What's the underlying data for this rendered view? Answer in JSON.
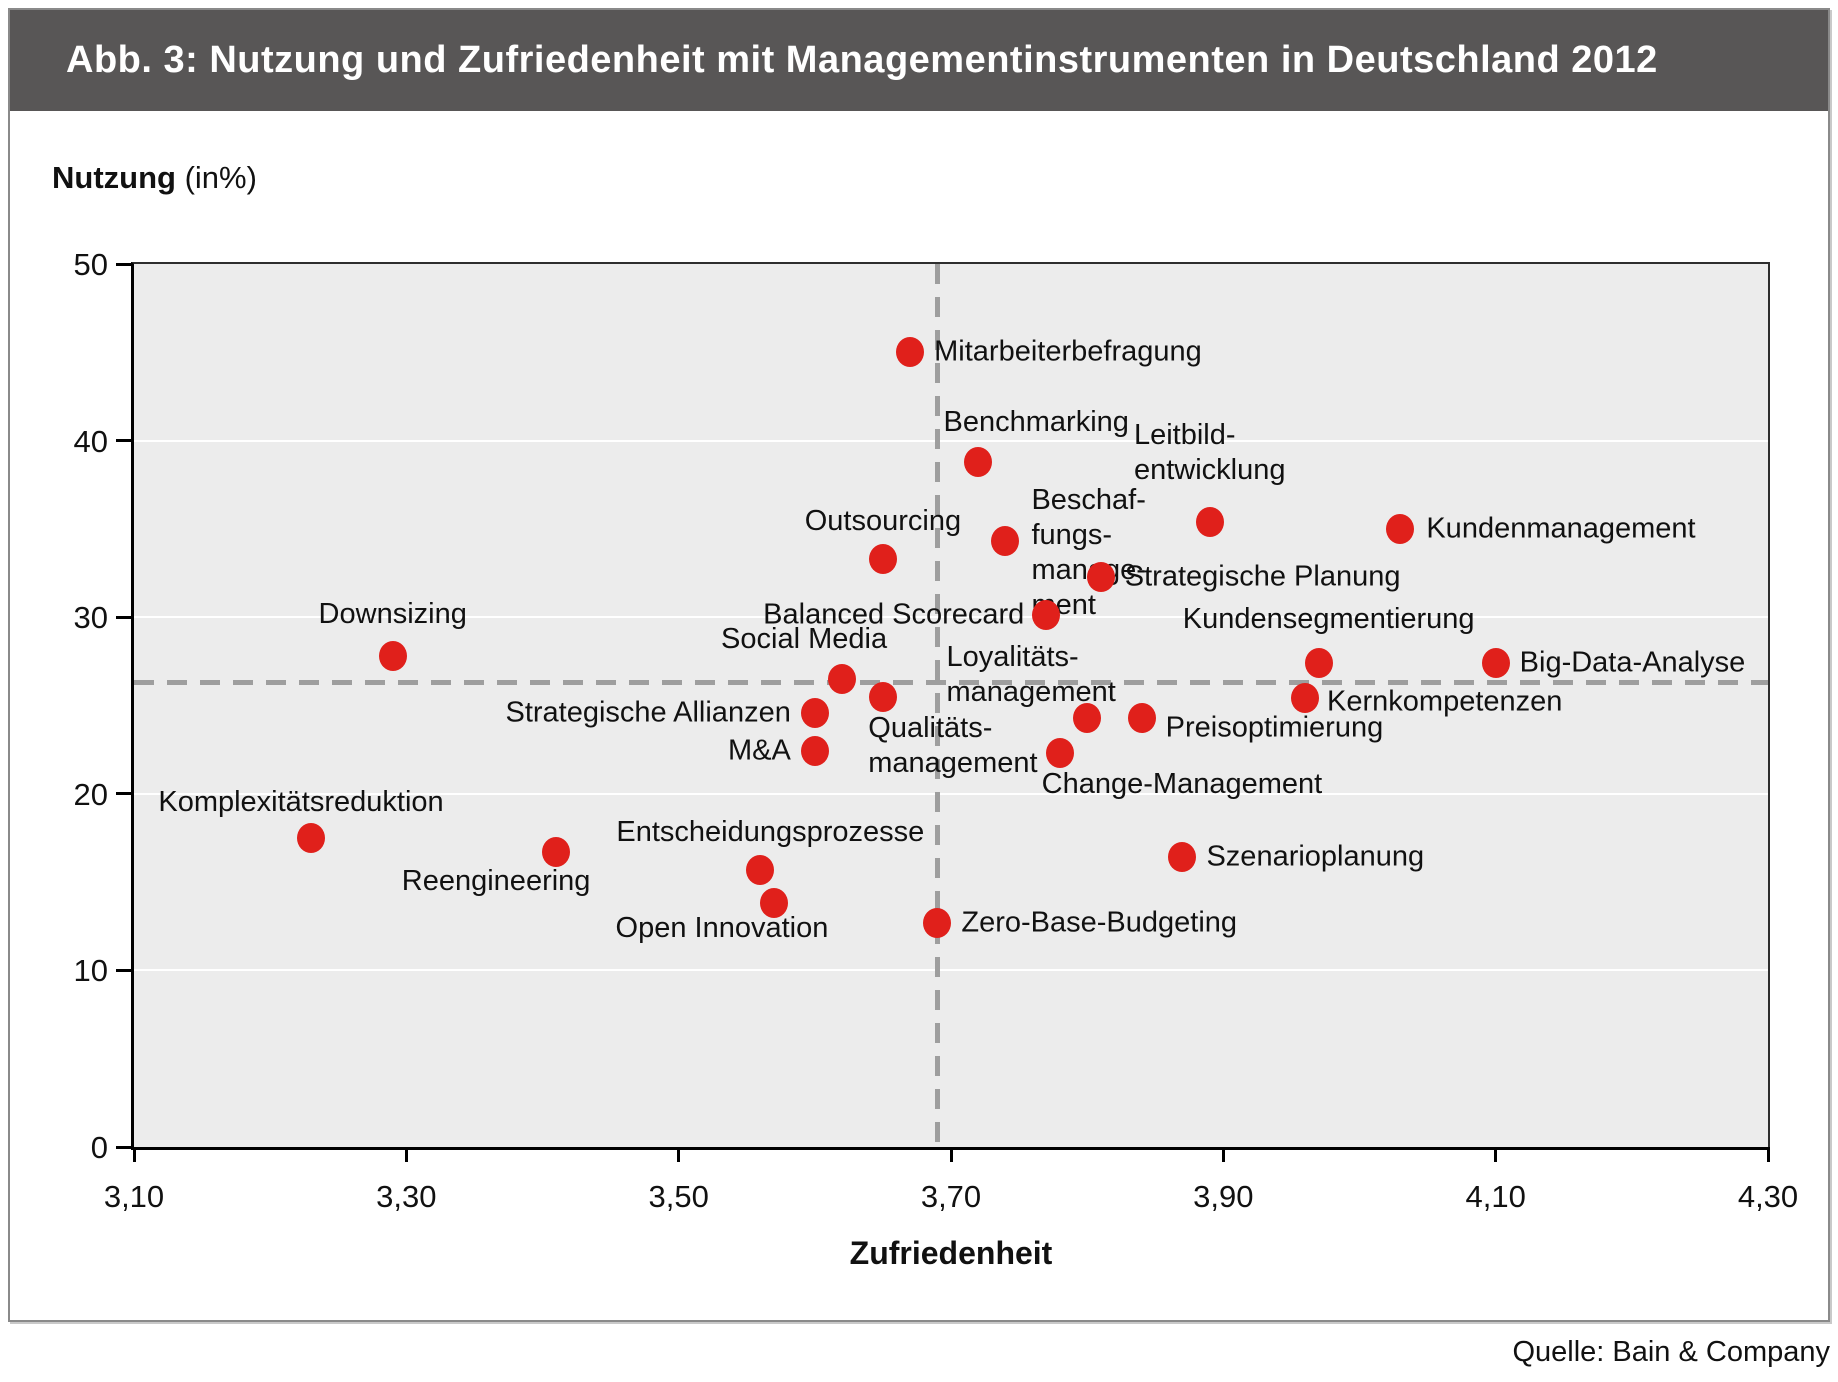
{
  "figure": {
    "title": "Abb. 3: Nutzung und Zufriedenheit mit Managementinstrumenten in Deutschland 2012",
    "source": "Quelle: Bain & Company"
  },
  "colors": {
    "point": "#e0201b",
    "title_bar": "#585656",
    "plot_background": "#ececec",
    "gridline": "#ffffff",
    "reference_dashed": "#9e9e9e",
    "axis": "#000000"
  },
  "chart_data": {
    "type": "scatter",
    "title": "Abb. 3: Nutzung und Zufriedenheit mit Managementinstrumenten in Deutschland 2012",
    "xlabel": "Zufriedenheit",
    "ylabel": "Nutzung",
    "ylabel_suffix": " (in%)",
    "xlim": [
      3.1,
      4.3
    ],
    "ylim": [
      0,
      50
    ],
    "xticks": [
      3.1,
      3.3,
      3.5,
      3.7,
      3.9,
      4.1,
      4.3
    ],
    "xtick_labels": [
      "3,10",
      "3,30",
      "3,50",
      "3,70",
      "3,90",
      "4,10",
      "4,30"
    ],
    "yticks": [
      0,
      10,
      20,
      30,
      40,
      50
    ],
    "ytick_labels": [
      "0",
      "10",
      "20",
      "30",
      "40",
      "50"
    ],
    "grid_y": [
      10,
      20,
      30,
      40
    ],
    "grid_on": true,
    "legend": null,
    "reference_lines": {
      "x": 3.69,
      "y": 26.3
    },
    "points": [
      {
        "label": "Mitarbeiterbefragung",
        "x": 3.67,
        "y": 45.0,
        "placement": "right",
        "off": 24
      },
      {
        "label": "Benchmarking",
        "x": 3.72,
        "y": 38.8,
        "placement": "above",
        "off": 22,
        "dx": 58
      },
      {
        "label": "Beschaf-\nfungs-\nmanage-\nment",
        "x": 3.74,
        "y": 34.3,
        "placement": "right",
        "off": 26,
        "dy": 12,
        "align": "left"
      },
      {
        "label": "Leitbild-\nentwicklung",
        "x": 3.89,
        "y": 35.4,
        "placement": "above",
        "off": 34,
        "align": "left"
      },
      {
        "label": "Kundenmanagement",
        "x": 4.03,
        "y": 35.0,
        "placement": "right",
        "off": 26
      },
      {
        "label": "Outsourcing",
        "x": 3.65,
        "y": 33.3,
        "placement": "above",
        "off": 20
      },
      {
        "label": "Strategische Planung",
        "x": 3.81,
        "y": 32.3,
        "placement": "right",
        "off": 24
      },
      {
        "label": "Balanced Scorecard",
        "x": 3.77,
        "y": 30.1,
        "placement": "left",
        "off": 22
      },
      {
        "label": "Downsizing",
        "x": 3.29,
        "y": 27.8,
        "placement": "above",
        "off": 24
      },
      {
        "label": "Kundensegmentierung",
        "x": 3.97,
        "y": 27.4,
        "placement": "above",
        "off": 26,
        "dx": 10
      },
      {
        "label": "Big-Data-Analyse",
        "x": 4.1,
        "y": 27.4,
        "placement": "right",
        "off": 24
      },
      {
        "label": "Social Media",
        "x": 3.62,
        "y": 26.5,
        "placement": "above",
        "off": 22,
        "dx": -38
      },
      {
        "label": "Kernkompetenzen",
        "x": 3.96,
        "y": 25.4,
        "placement": "right",
        "off": 22,
        "dy": 4
      },
      {
        "label": "Qualitäts-\nmanagement",
        "x": 3.65,
        "y": 25.5,
        "placement": "below",
        "off": 14,
        "dx": 70,
        "align": "left"
      },
      {
        "label": "Strategische Allianzen",
        "x": 3.6,
        "y": 24.6,
        "placement": "left",
        "off": 24
      },
      {
        "label": "Loyalitäts-\nmanagement",
        "x": 3.8,
        "y": 24.3,
        "placement": "above",
        "off": 8,
        "dx": -56,
        "align": "left"
      },
      {
        "label": "Preisoptimierung",
        "x": 3.84,
        "y": 24.3,
        "placement": "right",
        "off": 24,
        "dy": 10
      },
      {
        "label": "M&A",
        "x": 3.6,
        "y": 22.4,
        "placement": "left",
        "off": 24
      },
      {
        "label": "Change-Management",
        "x": 3.78,
        "y": 22.3,
        "placement": "below",
        "off": 14,
        "dx": 122
      },
      {
        "label": "Komplexitätsreduktion",
        "x": 3.23,
        "y": 17.5,
        "placement": "above",
        "off": 18,
        "dx": -10
      },
      {
        "label": "Reengineering",
        "x": 3.41,
        "y": 16.7,
        "placement": "below",
        "off": 12,
        "dx": -60
      },
      {
        "label": "Entscheidungsprozesse",
        "x": 3.56,
        "y": 15.7,
        "placement": "above",
        "off": 20,
        "dx": 10
      },
      {
        "label": "Szenarioplanung",
        "x": 3.87,
        "y": 16.4,
        "placement": "right",
        "off": 24
      },
      {
        "label": "Open Innovation",
        "x": 3.57,
        "y": 13.8,
        "placement": "below",
        "off": 8,
        "dx": -52
      },
      {
        "label": "Zero-Base-Budgeting",
        "x": 3.69,
        "y": 12.7,
        "placement": "right",
        "off": 24
      }
    ]
  }
}
